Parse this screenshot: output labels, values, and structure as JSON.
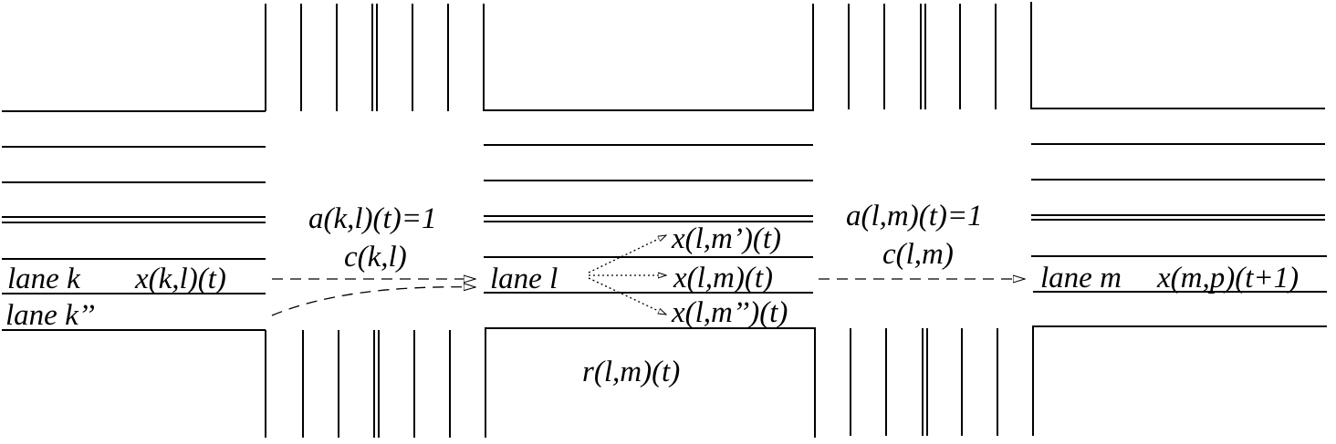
{
  "labels": {
    "lane_k": "lane k",
    "lane_k2": "lane k’’",
    "x_kl": "x(k,l)(t)",
    "a_kl": "a(k,l)(t)=1",
    "c_kl": "c(k,l)",
    "lane_l": "lane l",
    "x_lm1": "x(l,m’)(t)",
    "x_lm": "x(l,m)(t)",
    "x_lm2": "x(l,m’’)(t)",
    "r_lm": "r(l,m)(t)",
    "a_lm": "a(l,m)(t)=1",
    "c_lm": "c(l,m)",
    "lane_m": "lane m",
    "x_mp": "x(m,p)(t+1)"
  },
  "colors": {
    "line": "#000000",
    "background": "#ffffff"
  }
}
